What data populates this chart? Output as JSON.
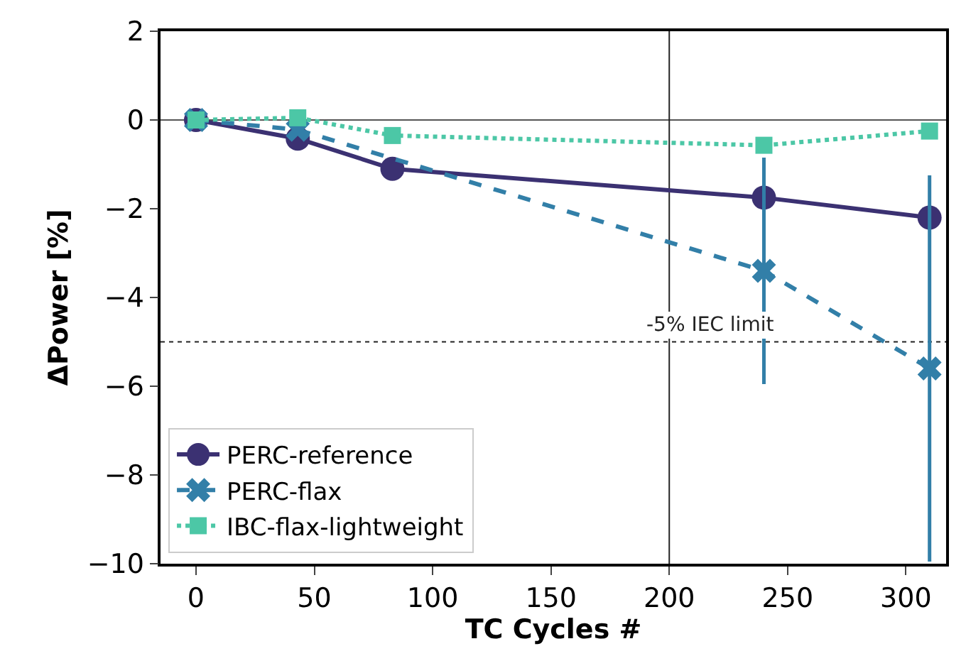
{
  "chart_data": {
    "type": "line",
    "xlabel": "TC Cycles #",
    "ylabel": "ΔPower [%]",
    "xlim": [
      -15,
      317
    ],
    "xticks": [
      0,
      50,
      100,
      150,
      200,
      250,
      300
    ],
    "ylim": [
      -10,
      2
    ],
    "yticks": [
      -10,
      -8,
      -6,
      -4,
      -2,
      0,
      2
    ],
    "grid": false,
    "legend": "bottom left",
    "series": [
      {
        "name": "PERC-reference",
        "color": "#3b3172",
        "marker": "circle",
        "line_style": "solid",
        "x": [
          0,
          43,
          83,
          240,
          310
        ],
        "values": [
          0,
          -0.42,
          -1.1,
          -1.75,
          -2.2
        ]
      },
      {
        "name": "PERC-flax",
        "color": "#327fa8",
        "marker": "cross",
        "line_style": "dashed",
        "x": [
          0,
          43,
          83,
          240,
          310
        ],
        "values": [
          0,
          -0.22,
          null,
          -3.4,
          -5.6
        ],
        "errors": [
          null,
          null,
          null,
          2.55,
          4.35
        ]
      },
      {
        "name": "IBC-flax-lightweight",
        "color": "#4cc7a6",
        "marker": "square",
        "line_style": "dotted",
        "x": [
          0,
          43,
          83,
          240,
          310
        ],
        "values": [
          0,
          0.05,
          -0.35,
          -0.57,
          -0.25
        ]
      }
    ],
    "ref_lines": [
      {
        "axis": "y",
        "value": -5,
        "label": "-5% IEC limit",
        "color": "#222222",
        "line_style": "dotted"
      },
      {
        "axis": "y",
        "value": 0,
        "label": null,
        "color": "#555555",
        "line_style": "solid"
      },
      {
        "axis": "x",
        "value": 200,
        "label": null,
        "color": "#222222",
        "line_style": "solid"
      }
    ]
  }
}
